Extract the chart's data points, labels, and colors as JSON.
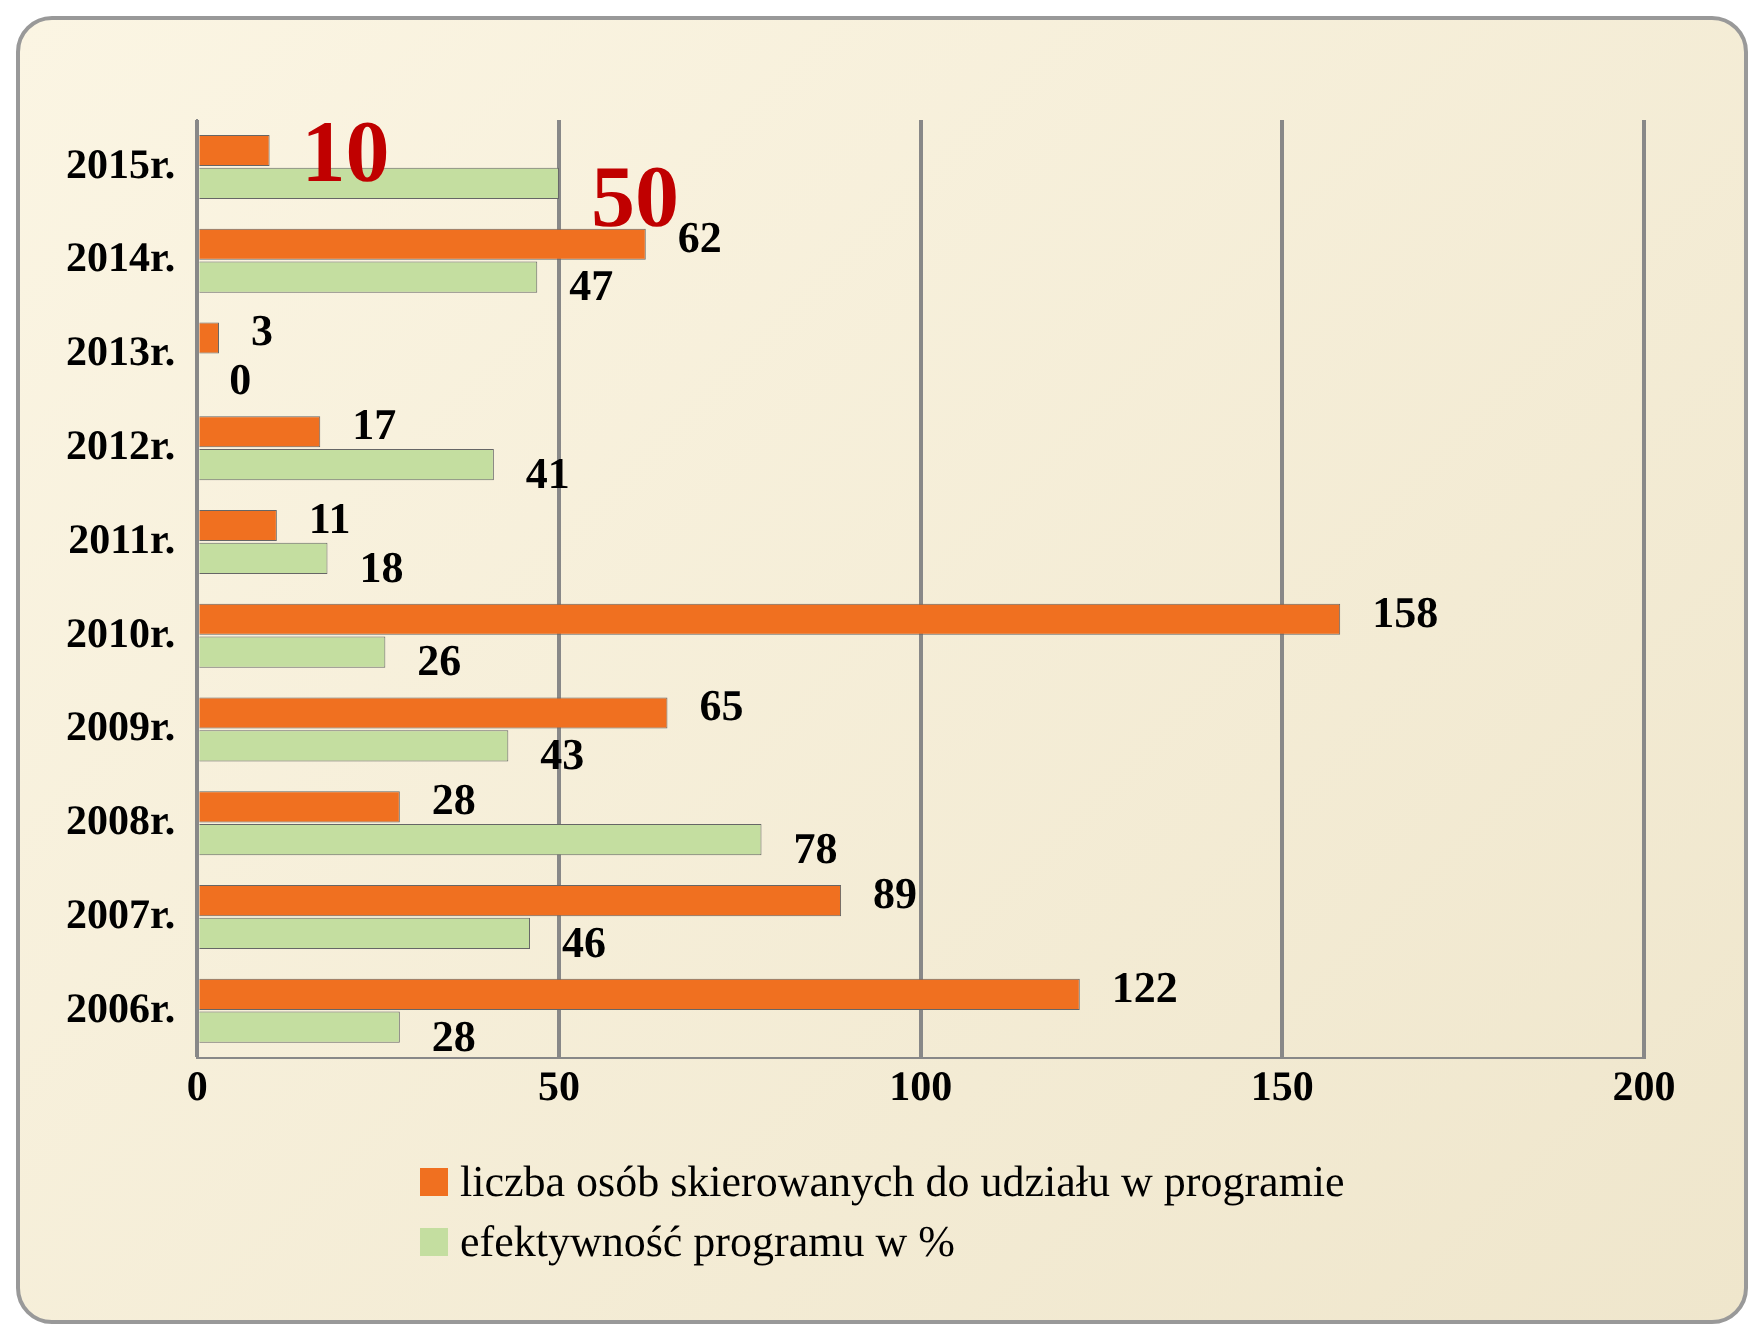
{
  "chart_data": {
    "type": "bar",
    "orientation": "horizontal",
    "categories": [
      "2015r.",
      "2014r.",
      "2013r.",
      "2012r.",
      "2011r.",
      "2010r.",
      "2009r.",
      "2008r.",
      "2007r.",
      "2006r."
    ],
    "series": [
      {
        "name": "liczba osób skierowanych do udziału w programie",
        "color": "#f07020",
        "values": [
          10,
          62,
          3,
          17,
          11,
          158,
          65,
          28,
          89,
          122
        ]
      },
      {
        "name": "efektywność programu w %",
        "color": "#c4dea0",
        "values": [
          50,
          47,
          0,
          41,
          18,
          26,
          43,
          78,
          46,
          28
        ]
      }
    ],
    "xlim": [
      0,
      200
    ],
    "xticks": [
      0,
      50,
      100,
      150,
      200
    ],
    "grid": "x",
    "legend": "bottom",
    "data_labels": true
  }
}
